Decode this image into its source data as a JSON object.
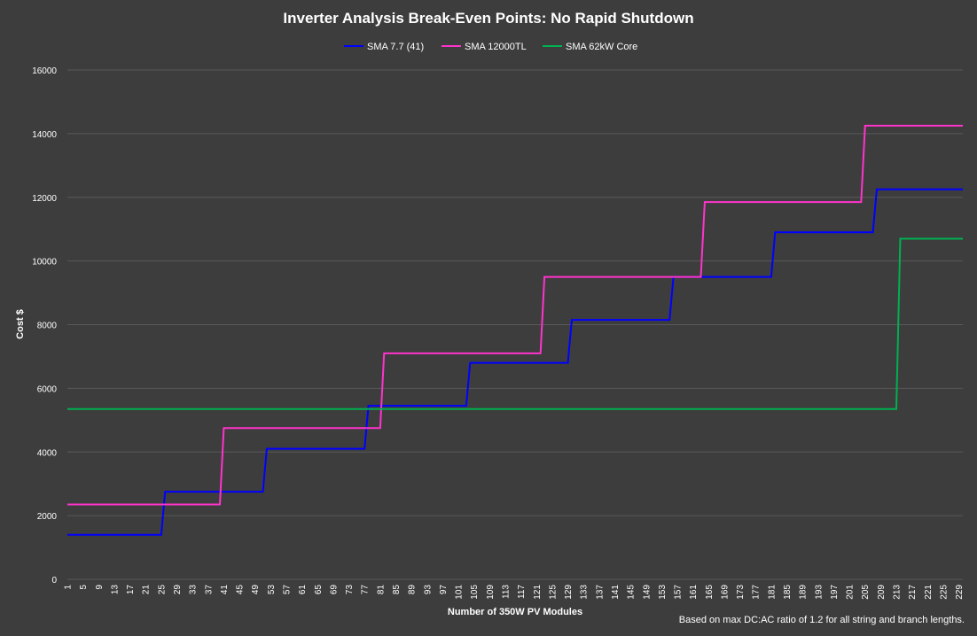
{
  "chart_data": {
    "type": "line",
    "title": "Inverter Analysis Break-Even Points: No Rapid Shutdown",
    "xlabel": "Number of 350W PV Modules",
    "ylabel": "Cost $",
    "footnote": "Based on max DC:AC ratio of 1.2 for all string and branch lengths.",
    "xlim": [
      1,
      230
    ],
    "ylim": [
      0,
      16000
    ],
    "yticks": [
      0,
      2000,
      4000,
      6000,
      8000,
      10000,
      12000,
      14000,
      16000
    ],
    "xticks": [
      1,
      5,
      9,
      13,
      17,
      21,
      25,
      29,
      33,
      37,
      41,
      45,
      49,
      53,
      57,
      61,
      65,
      69,
      73,
      77,
      81,
      85,
      89,
      93,
      97,
      101,
      105,
      109,
      113,
      117,
      121,
      125,
      129,
      133,
      137,
      141,
      145,
      149,
      153,
      157,
      161,
      165,
      169,
      173,
      177,
      181,
      185,
      189,
      193,
      197,
      201,
      205,
      209,
      213,
      217,
      221,
      225,
      229
    ],
    "grid": true,
    "legend_position": "top",
    "series": [
      {
        "name": "SMA 7.7 (41)",
        "color": "#0000ff",
        "x": [
          1,
          25,
          26,
          51,
          52,
          77,
          78,
          103,
          104,
          129,
          130,
          155,
          156,
          181,
          182,
          207,
          208,
          230
        ],
        "y": [
          1400,
          1400,
          2750,
          2750,
          4100,
          4100,
          5450,
          5450,
          6800,
          6800,
          8150,
          8150,
          9500,
          9500,
          10900,
          10900,
          12250,
          12250
        ]
      },
      {
        "name": "SMA 12000TL",
        "color": "#ff33cc",
        "x": [
          1,
          40,
          41,
          81,
          82,
          122,
          123,
          163,
          164,
          204,
          205,
          230
        ],
        "y": [
          2350,
          2350,
          4750,
          4750,
          7100,
          7100,
          9500,
          9500,
          11850,
          11850,
          14250,
          14250
        ]
      },
      {
        "name": "SMA 62kW Core",
        "color": "#00b050",
        "x": [
          1,
          213,
          214,
          230
        ],
        "y": [
          5350,
          5350,
          10700,
          10700
        ]
      }
    ]
  }
}
